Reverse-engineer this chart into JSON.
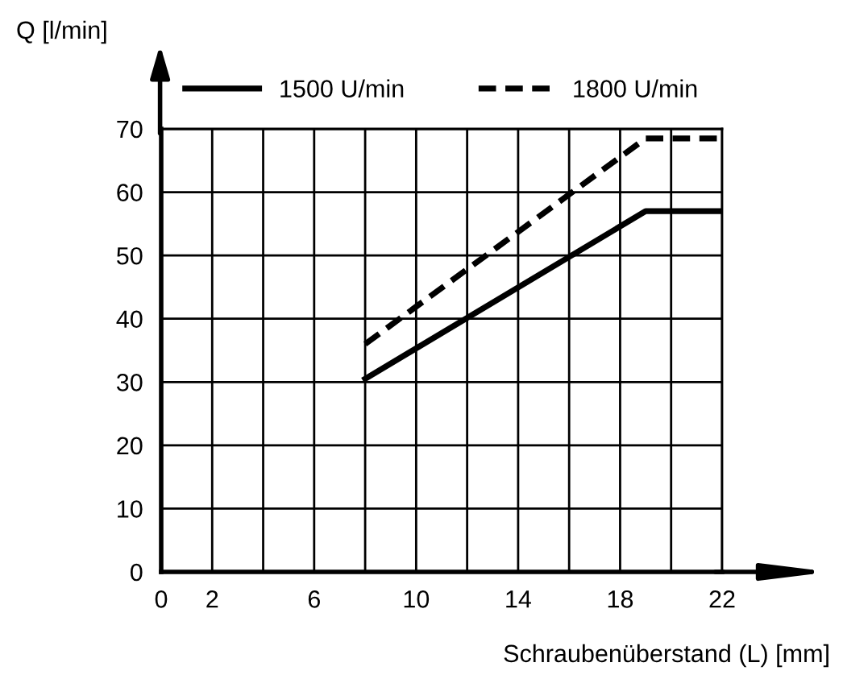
{
  "chart_data": {
    "type": "line",
    "xlabel": "Schraubenüberstand (L) [mm]",
    "ylabel": "Q [l/min]",
    "xlim": [
      0,
      22
    ],
    "ylim": [
      0,
      70
    ],
    "xticks": [
      0,
      2,
      {
        "value": 4,
        "label": null
      },
      6,
      {
        "value": 8,
        "label": null
      },
      10,
      {
        "value": 12,
        "label": null
      },
      14,
      {
        "value": 16,
        "label": null
      },
      18,
      {
        "value": 20,
        "label": null
      },
      22
    ],
    "yticks": [
      0,
      10,
      20,
      30,
      40,
      50,
      60,
      70
    ],
    "grid": true,
    "legend": "top",
    "marker": "none",
    "series": [
      {
        "name": "1500 U/min",
        "color": "#000000",
        "line_style": "solid",
        "x": [
          8,
          19,
          22
        ],
        "values": [
          30.5,
          57,
          57
        ]
      },
      {
        "name": "1800 U/min",
        "color": "#000000",
        "line_style": "dashed",
        "x": [
          8,
          19,
          22
        ],
        "values": [
          36,
          68.5,
          68.5
        ]
      }
    ]
  }
}
